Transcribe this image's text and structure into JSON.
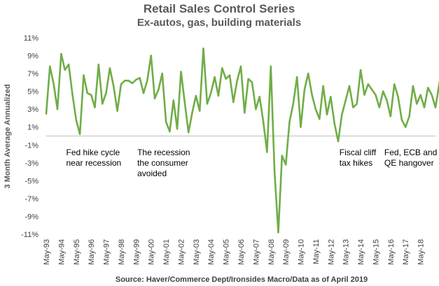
{
  "chart_data": {
    "type": "line",
    "title": "Retail Sales Control Series",
    "subtitle": "Ex-autos, gas, building materials",
    "ylabel": "3 Month Average Annualized",
    "xlabel": "",
    "source": "Source: Haver/Commerce Dept/Ironsides Macro/Data as of April 2019",
    "ylim": [
      -11,
      11
    ],
    "yticks": [
      "11%",
      "9%",
      "7%",
      "5%",
      "3%",
      "1%",
      "-1%",
      "-3%",
      "-5%",
      "-7%",
      "-9%",
      "-11%"
    ],
    "xticks": [
      "May-93",
      "May-94",
      "May-95",
      "May-96",
      "May-97",
      "May-98",
      "May-99",
      "May-00",
      "May-01",
      "May-02",
      "May-03",
      "May-04",
      "May-05",
      "May-06",
      "May-07",
      "May-08",
      "May-09",
      "May-10",
      "May-11",
      "May-12",
      "May-13",
      "May-14",
      "May-15",
      "May-16",
      "May-17",
      "May-18"
    ],
    "grid": false,
    "line_color": "#70AD47",
    "annotations": [
      {
        "lines": [
          "Fed hike cycle",
          "near recession"
        ],
        "anchor": "Sep-94"
      },
      {
        "lines": [
          "The recession",
          "the consumer",
          "avoided"
        ],
        "anchor": "Jun-99"
      },
      {
        "lines": [
          "Fiscal cliff",
          "tax hikes"
        ],
        "anchor": "Dec-12"
      },
      {
        "lines": [
          "Fed, ECB and BOJ",
          "QE hangover"
        ],
        "anchor": "Dec-15"
      }
    ],
    "series": [
      {
        "start": "May-93",
        "frequency": "quarterly",
        "values": [
          2.5,
          7.8,
          5.8,
          3.0,
          9.2,
          7.4,
          8.0,
          4.7,
          1.8,
          0.2,
          6.8,
          4.8,
          4.6,
          3.2,
          8.0,
          3.6,
          4.8,
          7.6,
          5.6,
          2.8,
          5.8,
          6.2,
          6.2,
          5.9,
          6.3,
          6.5,
          4.8,
          6.2,
          9.0,
          4.2,
          5.2,
          7.0,
          1.6,
          0.5,
          4.0,
          0.8,
          7.2,
          3.8,
          0.4,
          2.6,
          4.5,
          2.8,
          9.8,
          3.6,
          4.8,
          6.6,
          4.5,
          7.6,
          6.4,
          6.8,
          3.8,
          6.2,
          7.8,
          2.6,
          6.4,
          6.0,
          3.0,
          4.4,
          1.6,
          -1.8,
          7.8,
          -4.0,
          -10.8,
          -2.2,
          -3.2,
          1.6,
          3.6,
          6.6,
          1.0,
          5.2,
          7.0,
          4.6,
          3.0,
          1.9,
          5.6,
          2.4,
          4.4,
          1.4,
          -0.6,
          2.4,
          4.0,
          5.6,
          3.2,
          3.6,
          7.4,
          4.6,
          5.8,
          5.2,
          4.6,
          3.2,
          5.0,
          4.0,
          2.2,
          5.8,
          4.4,
          1.8,
          1.0,
          2.2,
          5.6,
          3.6,
          4.6,
          3.2,
          5.4,
          4.6,
          3.2,
          5.8,
          7.8,
          4.8,
          2.0,
          1.6,
          -0.5,
          -1.8,
          3.6
        ]
      }
    ]
  }
}
